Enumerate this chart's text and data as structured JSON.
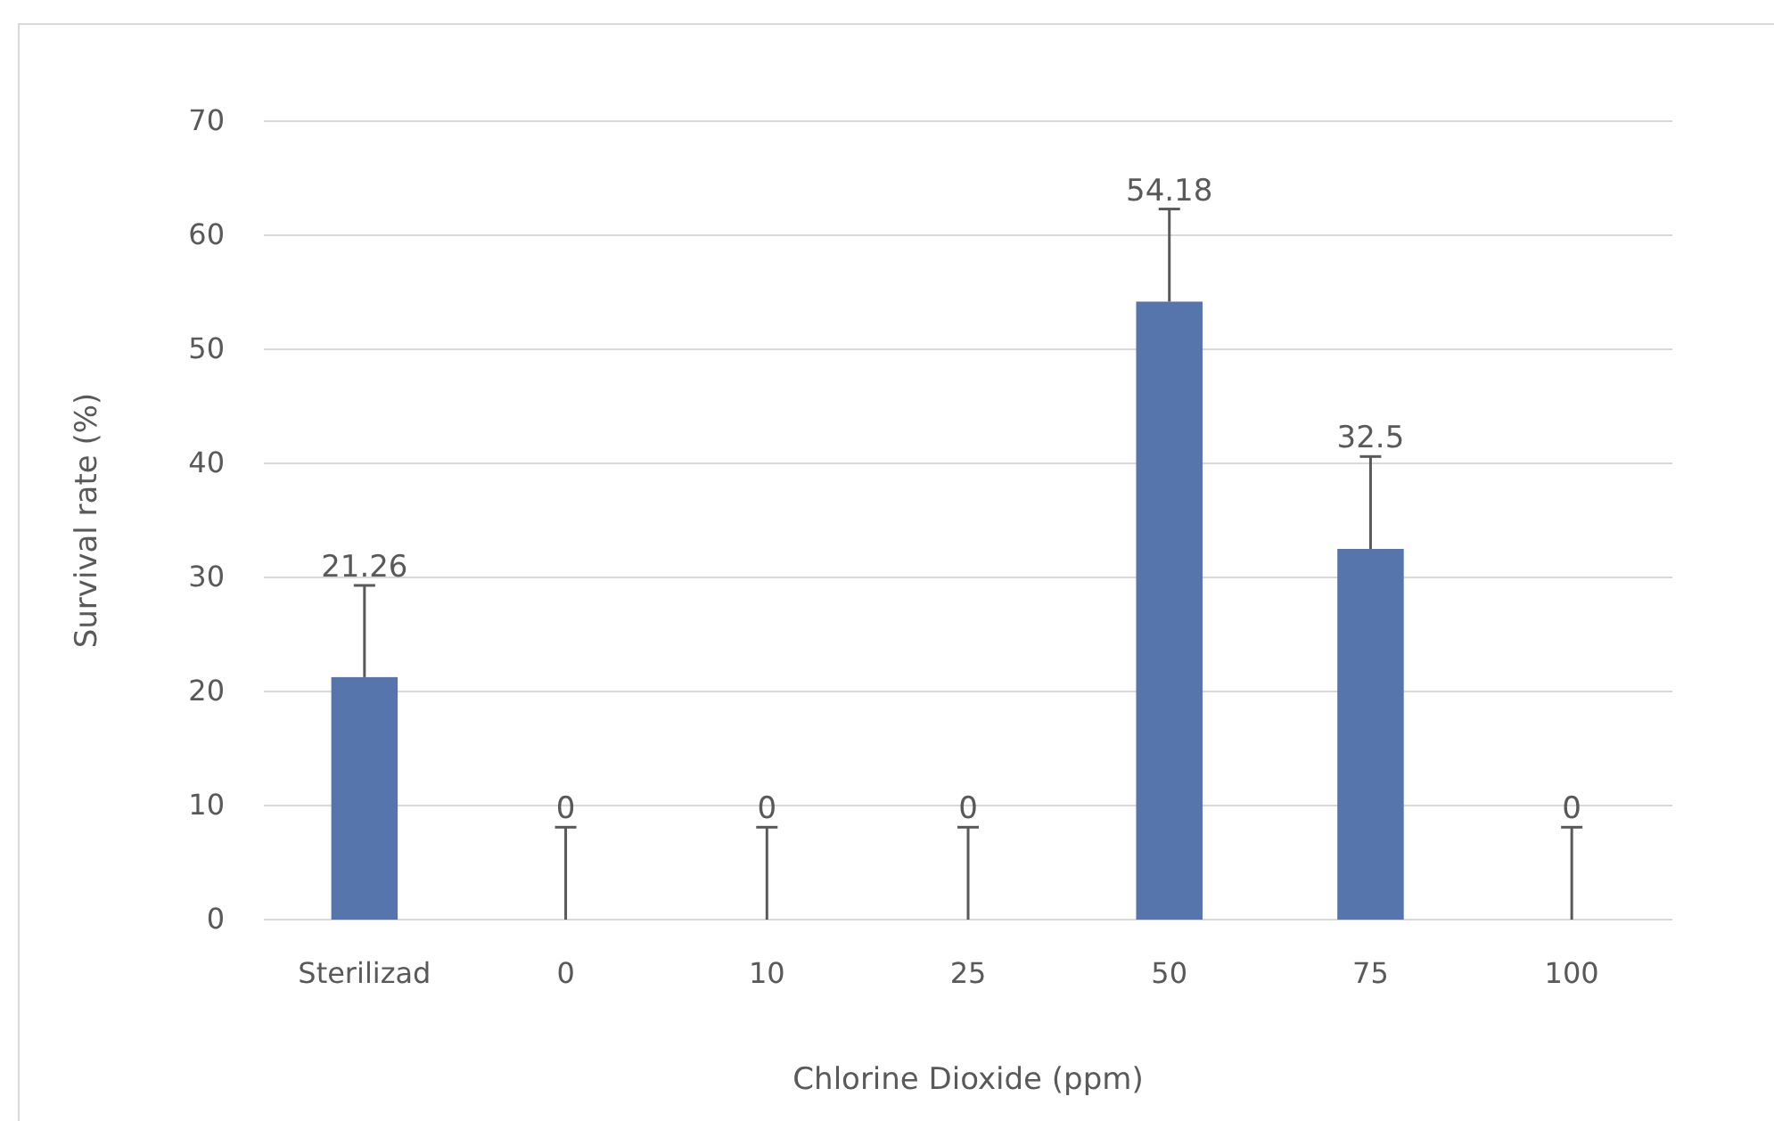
{
  "chart_data": {
    "type": "bar",
    "xlabel": "Chlorine Dioxide (ppm)",
    "ylabel": "Survival rate (%)",
    "categories": [
      "Sterilizad",
      "0",
      "10",
      "25",
      "50",
      "75",
      "100"
    ],
    "values": [
      21.26,
      0,
      0,
      0,
      54.18,
      32.5,
      0
    ],
    "errors": [
      [
        21.26,
        29.3
      ],
      [
        0,
        8.1
      ],
      [
        0,
        8.1
      ],
      [
        0,
        8.1
      ],
      [
        54.18,
        62.3
      ],
      [
        32.5,
        40.6
      ],
      [
        0,
        8.1
      ]
    ],
    "color": "#5675ad",
    "ylim": [
      0,
      70
    ],
    "yticks": [
      0,
      10,
      20,
      30,
      40,
      50,
      60,
      70
    ],
    "grid": "y",
    "data_labels": true
  }
}
